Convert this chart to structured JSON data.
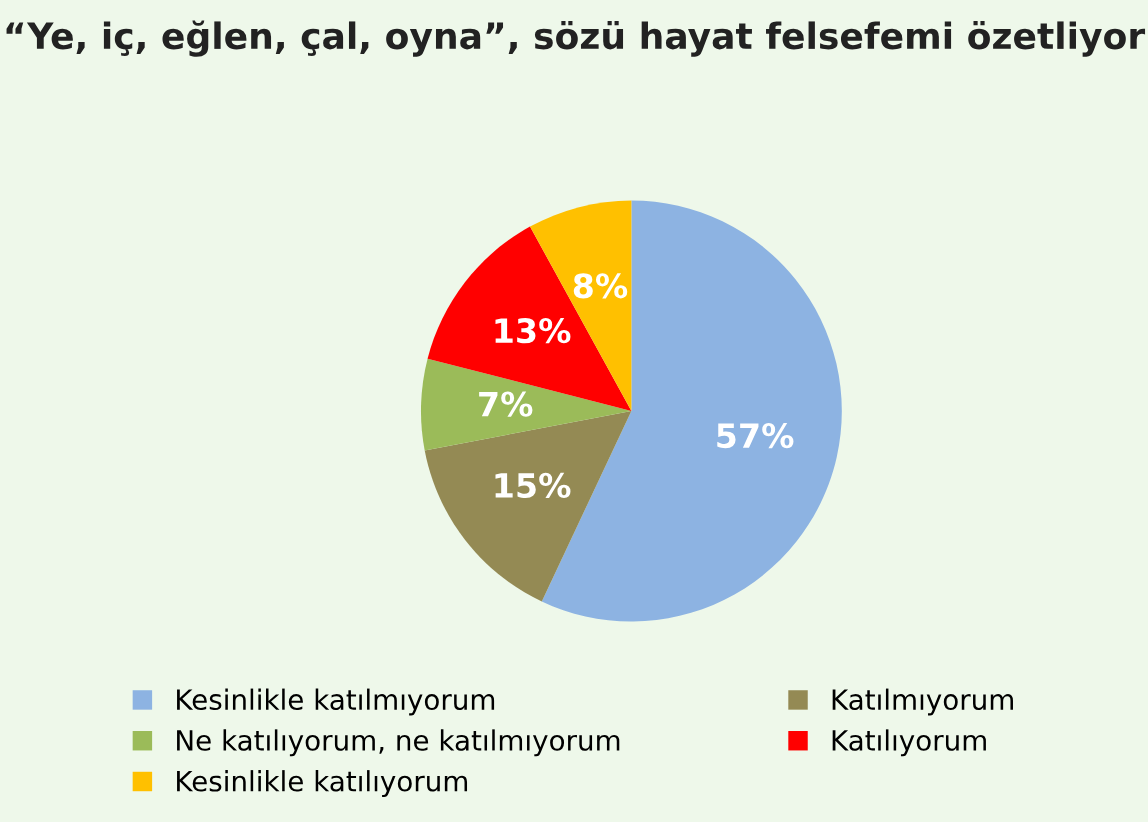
{
  "chart_data": {
    "type": "pie",
    "title": "“Ye, iç, eğlen, çal, oyna”, sözü hayat felsefemi özetliyor",
    "categories": [
      "Kesinlikle katılmıyorum",
      "Katılmıyorum",
      "Ne katılıyorum, ne katılmıyorum",
      "Katılıyorum",
      "Kesinlikle katılıyorum"
    ],
    "values": [
      57,
      15,
      7,
      13,
      8
    ],
    "colors": [
      "#8db3e2",
      "#948a54",
      "#9bbb59",
      "#ff0000",
      "#ffc000"
    ],
    "value_labels": [
      "57%",
      "15%",
      "7%",
      "13%",
      "8%"
    ],
    "legend": "bottom"
  }
}
